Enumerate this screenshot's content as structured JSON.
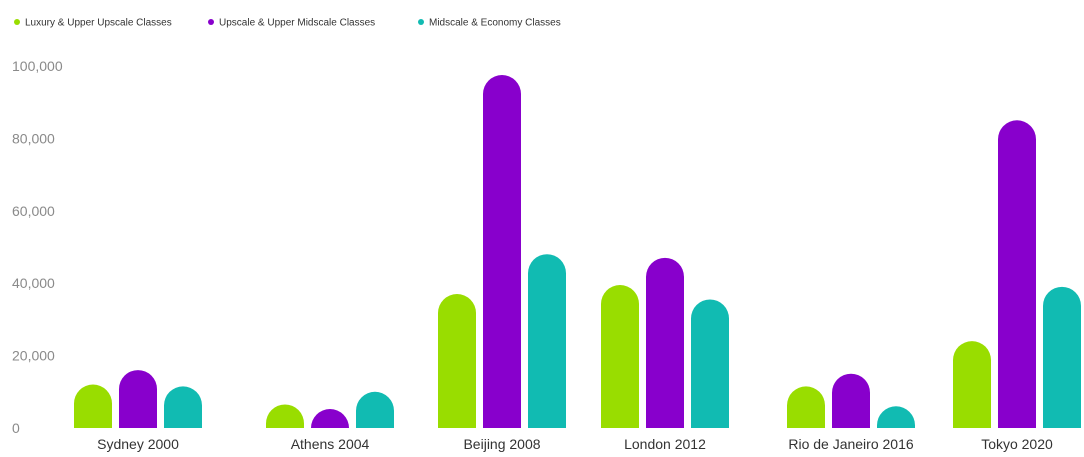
{
  "chart_data": {
    "type": "bar",
    "title": "",
    "xlabel": "",
    "ylabel": "",
    "ylim": [
      0,
      100000
    ],
    "yticks": [
      0,
      20000,
      40000,
      60000,
      80000,
      100000
    ],
    "ytick_labels": [
      "0",
      "20,000",
      "40,000",
      "60,000",
      "80,000",
      "100,000"
    ],
    "grid": false,
    "legend_position": "top-left",
    "categories": [
      "Sydney 2000",
      "Athens 2004",
      "Beijing 2008",
      "London 2012",
      "Rio de Janeiro 2016",
      "Tokyo 2020"
    ],
    "series": [
      {
        "name": "Luxury & Upper Upscale Classes",
        "color": "#99dd00",
        "values": [
          12000,
          6500,
          37000,
          39500,
          11500,
          24000
        ]
      },
      {
        "name": "Upscale & Upper Midscale Classes",
        "color": "#8800cc",
        "values": [
          16000,
          5000,
          97500,
          47000,
          15000,
          85000
        ]
      },
      {
        "name": "Midscale & Economy Classes",
        "color": "#11bbb2",
        "values": [
          11500,
          10000,
          48000,
          35500,
          6000,
          39000
        ]
      }
    ]
  }
}
